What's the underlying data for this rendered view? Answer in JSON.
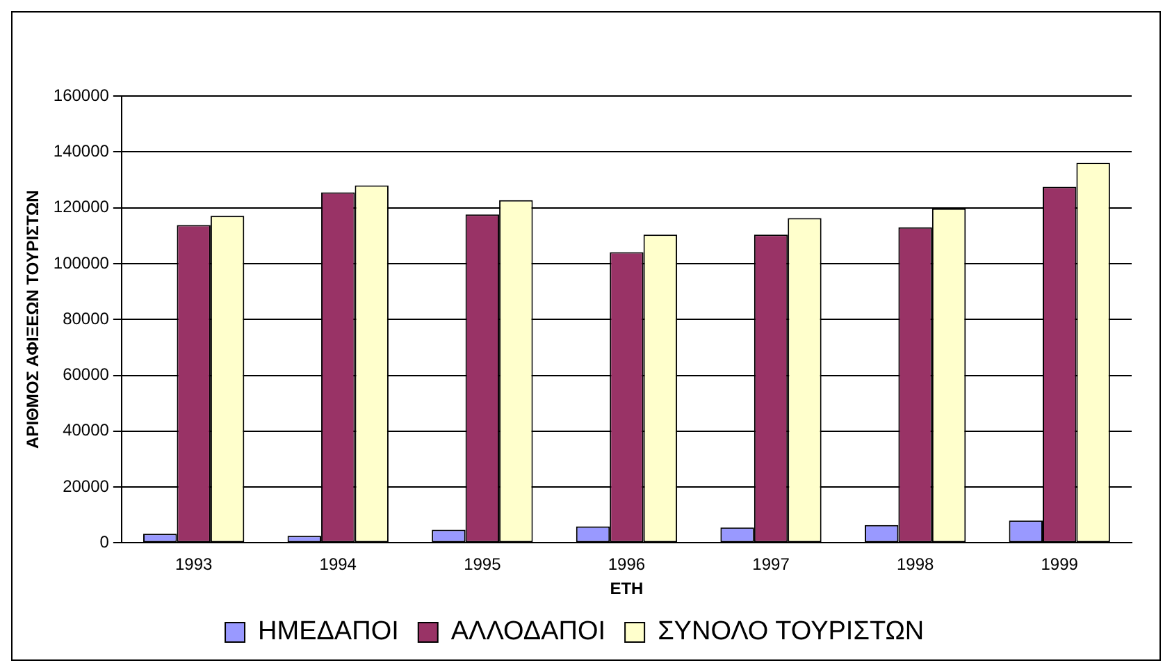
{
  "chart_data": {
    "type": "bar",
    "xlabel": "ΕΤΗ",
    "ylabel": "ΑΡΙΘΜΟΣ ΑΦΙΞΕΩΝ ΤΟΥΡΙΣΤΩΝ",
    "categories": [
      "1993",
      "1994",
      "1995",
      "1996",
      "1997",
      "1998",
      "1999"
    ],
    "series": [
      {
        "name": "ΗΜΕΔΑΠΟΙ",
        "color": "#9999ff",
        "values": [
          3300,
          2500,
          4700,
          5900,
          5500,
          6400,
          8000
        ]
      },
      {
        "name": "ΑΛΛΟΔΑΠΟΙ",
        "color": "#993366",
        "values": [
          113800,
          125500,
          117600,
          104100,
          110400,
          113000,
          127500
        ]
      },
      {
        "name": "ΣΥΝΟΛΟ ΤΟΥΡΙΣΤΩΝ",
        "color": "#ffffcc",
        "values": [
          117100,
          128000,
          122700,
          110400,
          116300,
          119700,
          136100
        ]
      }
    ],
    "ylim": [
      0,
      160000
    ],
    "yticks": [
      0,
      20000,
      40000,
      60000,
      80000,
      100000,
      120000,
      140000,
      160000
    ],
    "grid": "y",
    "legend": "bottom"
  }
}
